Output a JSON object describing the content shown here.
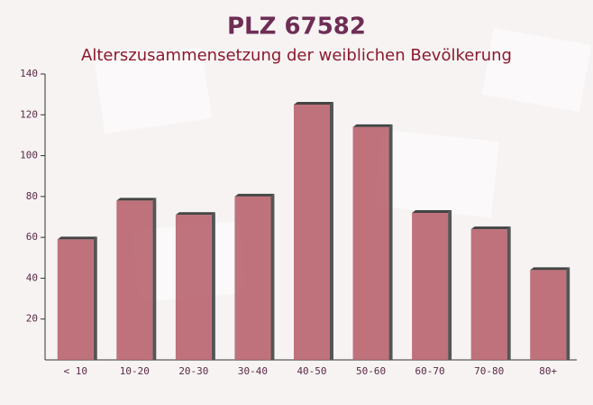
{
  "chart_data": {
    "type": "bar",
    "title": "PLZ 67582",
    "subtitle": "Alterszusammensetzung der weiblichen Bevölkerung",
    "categories": [
      "< 10",
      "10-20",
      "20-30",
      "30-40",
      "40-50",
      "50-60",
      "60-70",
      "70-80",
      "80+"
    ],
    "values": [
      59,
      78,
      71,
      80,
      125,
      114,
      72,
      64,
      44
    ],
    "color": "#b8646e",
    "ylim": [
      0,
      140
    ],
    "yticks": [
      20,
      40,
      60,
      80,
      100,
      120,
      140
    ]
  }
}
